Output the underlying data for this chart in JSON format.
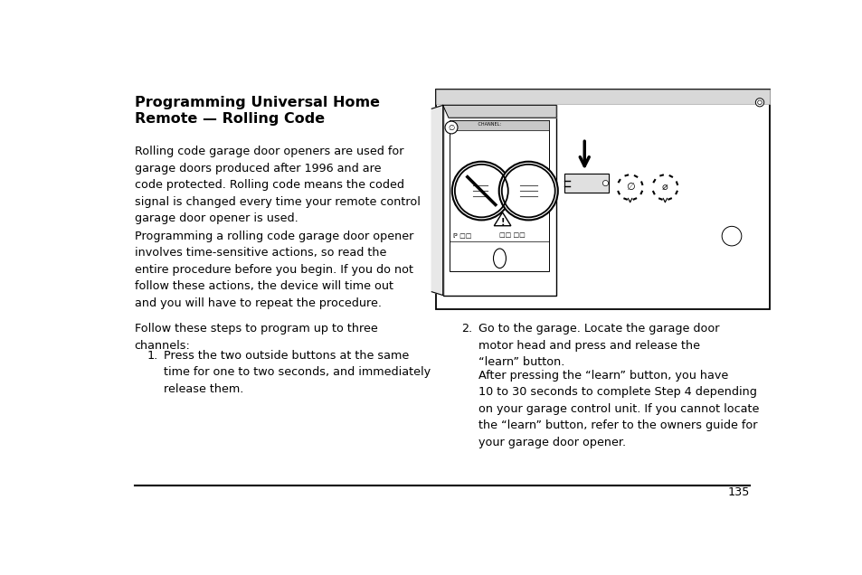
{
  "title_line1": "Programming Universal Home",
  "title_line2": "Remote — Rolling Code",
  "para1": "Rolling code garage door openers are used for\ngarage doors produced after 1996 and are\ncode protected. Rolling code means the coded\nsignal is changed every time your remote control\ngarage door opener is used.",
  "para2": "Programming a rolling code garage door opener\ninvolves time-sensitive actions, so read the\nentire procedure before you begin. If you do not\nfollow these actions, the device will time out\nand you will have to repeat the procedure.",
  "para3": "Follow these steps to program up to three\nchannels:",
  "step1_label": "1.",
  "step1_text": "Press the two outside buttons at the same\ntime for one to two seconds, and immediately\nrelease them.",
  "step2_label": "2.",
  "step2_text": "Go to the garage. Locate the garage door\nmotor head and press and release the\n“learn” button.",
  "step2_extra": "After pressing the “learn” button, you have\n10 to 30 seconds to complete Step 4 depending\non your garage control unit. If you cannot locate\nthe “learn” button, refer to the owners guide for\nyour garage door opener.",
  "page_number": "135",
  "bg_color": "#ffffff",
  "text_color": "#000000",
  "title_fontsize": 11.5,
  "body_fontsize": 9.2
}
